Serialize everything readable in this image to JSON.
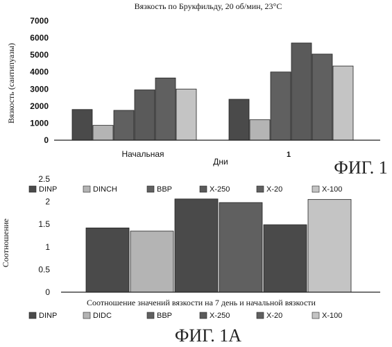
{
  "colors": {
    "bar_dark": "#4a4a4a",
    "bar_mid": "#606060",
    "bar_light": "#b4b4b4",
    "bar_lighter": "#c4c4c4",
    "bar_mid2": "#5a5a5a",
    "axis": "#222222"
  },
  "chart_data": [
    {
      "type": "bar",
      "title": "Вязкость по Брукфильду, 20 об/мин, 23°С",
      "ylabel": "Вязкость (сантипуазы)",
      "xlabel": "Дни",
      "figure_label": "ФИГ. 1",
      "categories": [
        "Начальная",
        "1"
      ],
      "yticks": [
        "0",
        "1000",
        "2000",
        "3000",
        "4000",
        "5000",
        "6000",
        "7000"
      ],
      "ylim": [
        0,
        7000
      ],
      "grid": false,
      "series": [
        {
          "values": [
            1800,
            2400
          ]
        },
        {
          "values": [
            870,
            1200
          ]
        },
        {
          "values": [
            1750,
            4000
          ]
        },
        {
          "values": [
            2950,
            5700
          ]
        },
        {
          "values": [
            3650,
            5050
          ]
        },
        {
          "values": [
            3000,
            4350
          ]
        }
      ]
    },
    {
      "type": "bar",
      "title": "",
      "ylabel": "Соотношение",
      "xlabel": "Соотношение значений вязкости на 7 день и начальной вязкости",
      "figure_label": "ФИГ. 1А",
      "legend_top": [
        "DINP",
        "DINCH",
        "BBP",
        "X-250",
        "X-20",
        "X-100"
      ],
      "legend_bottom": [
        "DINP",
        "DIDC",
        "BBP",
        "X-250",
        "X-20",
        "X-100"
      ],
      "categories": [
        ""
      ],
      "yticks": [
        "0",
        "0.5",
        "1",
        "1.5",
        "2",
        "2.5"
      ],
      "ylim": [
        0,
        2.5
      ],
      "grid": false,
      "series": [
        {
          "values": [
            1.42
          ]
        },
        {
          "values": [
            1.35
          ]
        },
        {
          "values": [
            2.06
          ]
        },
        {
          "values": [
            1.98
          ]
        },
        {
          "values": [
            1.49
          ]
        },
        {
          "values": [
            2.05
          ]
        }
      ]
    }
  ]
}
